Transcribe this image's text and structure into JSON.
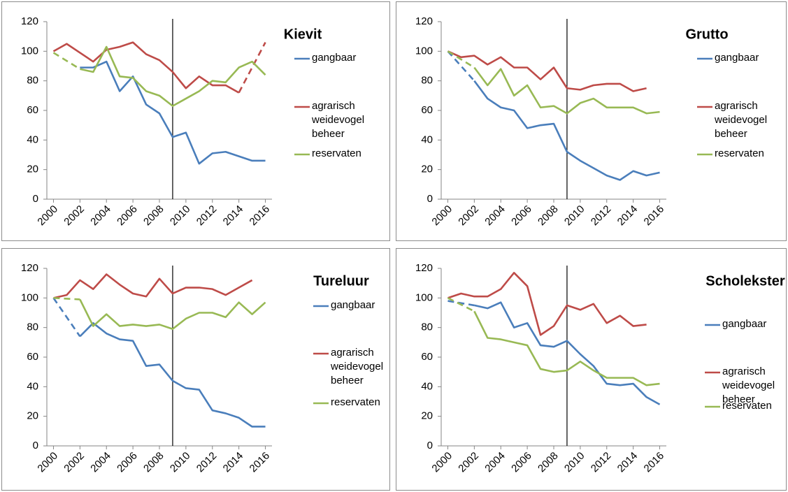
{
  "chart_data": [
    {
      "type": "line",
      "title": "Kievit",
      "x": [
        2000,
        2001,
        2002,
        2003,
        2004,
        2005,
        2006,
        2007,
        2008,
        2009,
        2010,
        2011,
        2012,
        2013,
        2014,
        2015,
        2016
      ],
      "xlim": [
        1999.5,
        2016.5
      ],
      "xticks": [
        2000,
        2002,
        2004,
        2006,
        2008,
        2010,
        2012,
        2014,
        2016
      ],
      "ylim": [
        0,
        120
      ],
      "yticks": [
        0,
        20,
        40,
        60,
        80,
        100,
        120
      ],
      "vline_x": 2009,
      "series": [
        {
          "name": "gangbaar",
          "color": "#4a7ebb",
          "values": [
            null,
            null,
            89,
            89,
            93,
            73,
            83,
            64,
            58,
            42,
            45,
            24,
            31,
            32,
            29,
            26,
            26
          ]
        },
        {
          "name": "agrarisch weidevogel beheer",
          "color": "#be4b48",
          "values": [
            100,
            105,
            99,
            93,
            101,
            103,
            106,
            98,
            94,
            86,
            75,
            83,
            77,
            77,
            72,
            null,
            106
          ]
        },
        {
          "name": "reservaten",
          "color": "#98b954",
          "values": [
            99,
            null,
            88,
            86,
            103,
            83,
            82,
            73,
            70,
            63,
            68,
            73,
            80,
            79,
            89,
            93,
            84
          ]
        }
      ]
    },
    {
      "type": "line",
      "title": "Grutto",
      "x": [
        2000,
        2001,
        2002,
        2003,
        2004,
        2005,
        2006,
        2007,
        2008,
        2009,
        2010,
        2011,
        2012,
        2013,
        2014,
        2015,
        2016
      ],
      "xlim": [
        1999.5,
        2016.5
      ],
      "xticks": [
        2000,
        2002,
        2004,
        2006,
        2008,
        2010,
        2012,
        2014,
        2016
      ],
      "ylim": [
        0,
        120
      ],
      "yticks": [
        0,
        20,
        40,
        60,
        80,
        100,
        120
      ],
      "vline_x": 2009,
      "series": [
        {
          "name": "gangbaar",
          "color": "#4a7ebb",
          "values": [
            100,
            null,
            80,
            68,
            62,
            60,
            48,
            50,
            51,
            32,
            26,
            21,
            16,
            13,
            19,
            16,
            18
          ]
        },
        {
          "name": "agrarisch weidevogel beheer",
          "color": "#be4b48",
          "values": [
            100,
            96,
            97,
            91,
            96,
            89,
            89,
            81,
            89,
            75,
            74,
            77,
            78,
            78,
            73,
            75,
            null
          ]
        },
        {
          "name": "reservaten",
          "color": "#98b954",
          "values": [
            100,
            null,
            89,
            77,
            88,
            70,
            77,
            62,
            63,
            58,
            65,
            68,
            62,
            62,
            62,
            58,
            59
          ]
        }
      ]
    },
    {
      "type": "line",
      "title": "Tureluur",
      "x": [
        2000,
        2001,
        2002,
        2003,
        2004,
        2005,
        2006,
        2007,
        2008,
        2009,
        2010,
        2011,
        2012,
        2013,
        2014,
        2015,
        2016
      ],
      "xlim": [
        1999.5,
        2016.5
      ],
      "xticks": [
        2000,
        2002,
        2004,
        2006,
        2008,
        2010,
        2012,
        2014,
        2016
      ],
      "ylim": [
        0,
        120
      ],
      "yticks": [
        0,
        20,
        40,
        60,
        80,
        100,
        120
      ],
      "vline_x": 2009,
      "series": [
        {
          "name": "gangbaar",
          "color": "#4a7ebb",
          "values": [
            100,
            null,
            74,
            83,
            76,
            72,
            71,
            54,
            55,
            44,
            39,
            38,
            24,
            22,
            19,
            13,
            13
          ]
        },
        {
          "name": "agrarisch weidevogel beheer",
          "color": "#be4b48",
          "values": [
            100,
            102,
            112,
            106,
            116,
            109,
            103,
            101,
            113,
            103,
            107,
            107,
            106,
            102,
            107,
            112,
            null
          ]
        },
        {
          "name": "reservaten",
          "color": "#98b954",
          "values": [
            100,
            null,
            99,
            81,
            89,
            81,
            82,
            81,
            82,
            79,
            86,
            90,
            90,
            87,
            97,
            89,
            97
          ]
        }
      ]
    },
    {
      "type": "line",
      "title": "Scholekster",
      "x": [
        2000,
        2001,
        2002,
        2003,
        2004,
        2005,
        2006,
        2007,
        2008,
        2009,
        2010,
        2011,
        2012,
        2013,
        2014,
        2015,
        2016
      ],
      "xlim": [
        1999.5,
        2016.5
      ],
      "xticks": [
        2000,
        2002,
        2004,
        2006,
        2008,
        2010,
        2012,
        2014,
        2016
      ],
      "ylim": [
        0,
        120
      ],
      "yticks": [
        0,
        20,
        40,
        60,
        80,
        100,
        120
      ],
      "vline_x": 2009,
      "series": [
        {
          "name": "gangbaar",
          "color": "#4a7ebb",
          "values": [
            98,
            null,
            95,
            93,
            97,
            80,
            83,
            68,
            67,
            71,
            62,
            54,
            42,
            41,
            42,
            33,
            28
          ]
        },
        {
          "name": "agrarisch weidevogel beheer",
          "color": "#be4b48",
          "values": [
            100,
            103,
            101,
            101,
            106,
            117,
            108,
            75,
            81,
            95,
            92,
            96,
            83,
            88,
            81,
            82,
            null
          ]
        },
        {
          "name": "reservaten",
          "color": "#98b954",
          "values": [
            100,
            null,
            91,
            73,
            72,
            70,
            68,
            52,
            50,
            51,
            57,
            51,
            46,
            46,
            46,
            41,
            42
          ]
        }
      ]
    }
  ]
}
